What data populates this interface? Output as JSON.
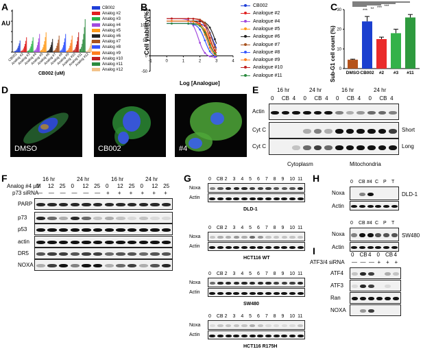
{
  "panels": {
    "A": "A",
    "B": "B",
    "C": "C",
    "D": "D",
    "E": "E",
    "F": "F",
    "G": "G",
    "H": "H",
    "I": "I"
  },
  "colors": {
    "cb002": "#1f3fd8",
    "a2": "#e02020",
    "a3": "#2bb34a",
    "a4": "#a14adf",
    "a5": "#ff9a1a",
    "a6": "#222222",
    "a7": "#a8521e",
    "a8": "#3355ff",
    "a9": "#ff7f1f",
    "a10": "#c02020",
    "a11": "#2b8a3e",
    "a12": "#f3c38a",
    "c_bar0": "#b5531b",
    "c_bar1": "#1b3fcf",
    "c_bar2": "#ea2b2b",
    "c_bar3": "#34b24a",
    "c_bar4": "#2e9a3e"
  },
  "panelA": {
    "ylabel": "AU",
    "xlabel": "CB002 (uM)",
    "ticks": [
      "0",
      "20",
      "40",
      "60"
    ],
    "groups": [
      "CB002",
      "Analog #2",
      "Analog #3",
      "Analog #4",
      "Analog #5",
      "Analog #6",
      "Analog #7",
      "Analog #8",
      "Analog #9",
      "Analog #10",
      "Analog #11",
      "Analog #12"
    ],
    "legend": [
      "CB002",
      "Analog #2",
      "Analog #3",
      "Analog #4",
      "Analog #5",
      "Analog #6",
      "Analog #7",
      "Analog #8",
      "Analog #9",
      "Analog #10",
      "Analog #11",
      "Analog #12"
    ]
  },
  "panelB": {
    "ylabel": "Cell viability(%)",
    "xlabel": "Log [Analogue]",
    "yticks": [
      "150",
      "100",
      "50",
      "0",
      "-50"
    ],
    "xticks": [
      "-1",
      "0",
      "1",
      "2",
      "3",
      "4"
    ],
    "legend": [
      "CB002",
      "Analogue #2",
      "Analogue #4",
      "Analogue #5",
      "Analogue #6",
      "Analogue #7",
      "Analogue #8",
      "Analogue #9",
      "Analogue #10",
      "Analogue #11"
    ]
  },
  "panelC": {
    "ylabel": "Sub-G1 cell count (%)",
    "yticks": [
      "0",
      "10",
      "20",
      "30"
    ],
    "cats": [
      "DMSO",
      "CB002",
      "#2",
      "#3",
      "#11"
    ],
    "stars": [
      "***",
      "**",
      "***",
      "***"
    ]
  },
  "panelD": {
    "labels": [
      "DMSO",
      "CB002",
      "#4"
    ]
  },
  "panelE": {
    "times": [
      "16 hr",
      "24 hr",
      "16 hr",
      "24 hr"
    ],
    "lanes": [
      "0",
      "CB",
      "4",
      "0",
      "CB",
      "4",
      "0",
      "CB",
      "4",
      "0",
      "CB",
      "4"
    ],
    "rows": [
      "Actin",
      "Cyt C",
      "Cyt C"
    ],
    "right": [
      "Short",
      "Long"
    ],
    "fractions": [
      "Cytoplasm",
      "Mitochondria"
    ]
  },
  "panelF": {
    "times": [
      "16 hr",
      "24 hr",
      "16 hr",
      "24 hr"
    ],
    "treat": "Analog #4 µM",
    "lanes": [
      "0",
      "12",
      "25",
      "0",
      "12",
      "25",
      "0",
      "12",
      "25",
      "0",
      "12",
      "25"
    ],
    "sirna": "p73 siRNA",
    "sirna_marks": [
      "—",
      "—",
      "—",
      "—",
      "—",
      "—",
      "+",
      "+",
      "+",
      "+",
      "+",
      "+"
    ],
    "rows": [
      "PARP",
      "p73",
      "p53",
      "actin",
      "DR5",
      "NOXA"
    ]
  },
  "panelG": {
    "lanes": [
      "0",
      "CB",
      "2",
      "3",
      "4",
      "5",
      "6",
      "7",
      "8",
      "9",
      "10",
      "11"
    ],
    "blocks": [
      {
        "title": "DLD-1"
      },
      {
        "title": "HCT116 WT"
      },
      {
        "title": "SW480"
      },
      {
        "title": "HCT116 R175H"
      }
    ],
    "rows": [
      "Noxa",
      "Actin"
    ]
  },
  "panelH": {
    "lanes": [
      "0",
      "CB",
      "#4",
      "C",
      "P",
      "T"
    ],
    "rows": [
      "Noxa",
      "Actin"
    ],
    "cells": [
      "DLD-1",
      "SW480"
    ]
  },
  "panelI": {
    "lanes": [
      "0",
      "CB",
      "4",
      "0",
      "CB",
      "4"
    ],
    "sirna": "ATF3/4 siRNA",
    "marks": [
      "—",
      "—",
      "—",
      "+",
      "+",
      "+"
    ],
    "rows": [
      "ATF4",
      "ATF3",
      "Ran",
      "NOXA"
    ]
  }
}
